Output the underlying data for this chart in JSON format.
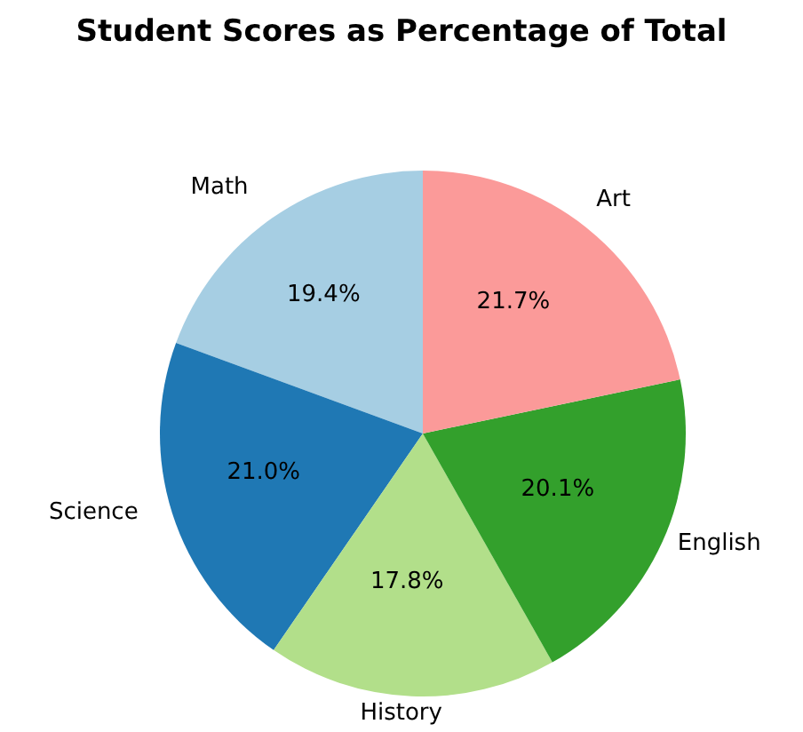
{
  "chart_data": {
    "type": "pie",
    "title": "Student Scores as Percentage of Total",
    "categories": [
      "Math",
      "Science",
      "History",
      "English",
      "Art"
    ],
    "values": [
      19.4,
      21.0,
      17.8,
      20.1,
      21.7
    ],
    "value_labels": [
      "19.4%",
      "21.0%",
      "17.8%",
      "20.1%",
      "21.7%"
    ],
    "colors": [
      "#a6cee3",
      "#1f78b4",
      "#b2df8a",
      "#33a02c",
      "#fb9a99"
    ],
    "legend": false
  }
}
